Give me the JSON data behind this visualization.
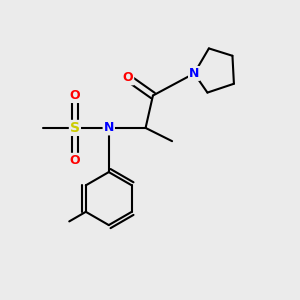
{
  "bg_color": "#ebebeb",
  "bond_color": "#000000",
  "atom_colors": {
    "N": "#0000ff",
    "O": "#ff0000",
    "S": "#cccc00",
    "C": "#000000"
  },
  "figsize": [
    3.0,
    3.0
  ],
  "dpi": 100
}
